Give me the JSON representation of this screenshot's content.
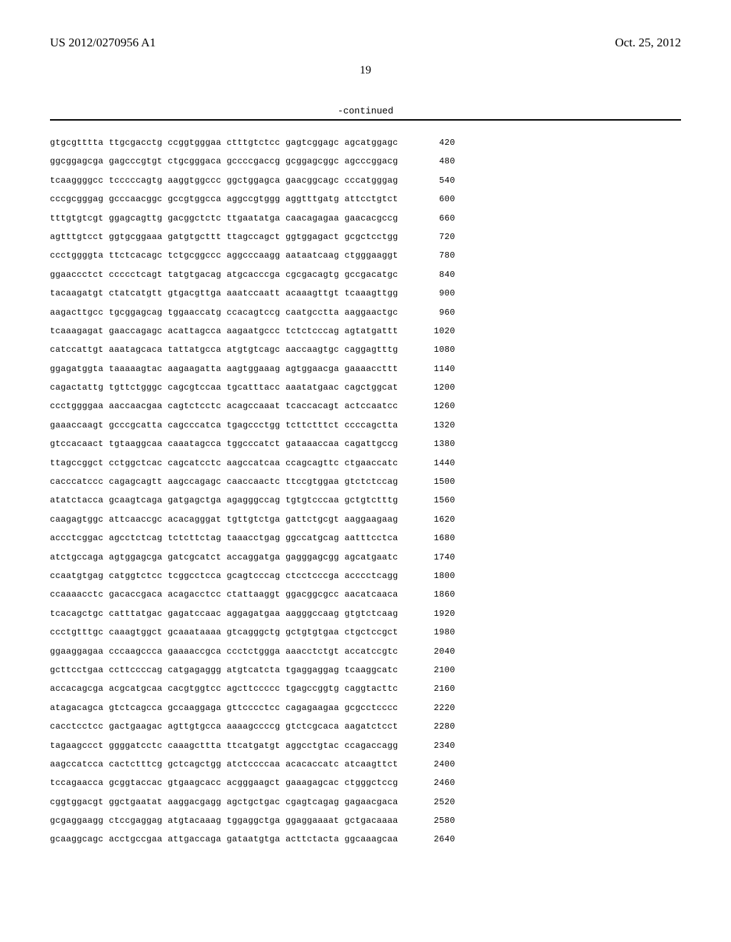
{
  "header": {
    "publication_number": "US 2012/0270956 A1",
    "publication_date": "Oct. 25, 2012"
  },
  "page_number": "19",
  "continued_label": "-continued",
  "sequence": {
    "rows": [
      {
        "text": "gtgcgtttta ttgcgacctg ccggtgggaa ctttgtctcc gagtcggagc agcatggagc",
        "pos": "420"
      },
      {
        "text": "ggcggagcga gagcccgtgt ctgcgggaca gccccgaccg gcggagcggc agcccggacg",
        "pos": "480"
      },
      {
        "text": "tcaaggggcc tcccccagtg aaggtggccc ggctggagca gaacggcagc cccatgggag",
        "pos": "540"
      },
      {
        "text": "cccgcgggag gcccaacggc gccgtggcca aggccgtggg aggtttgatg attcctgtct",
        "pos": "600"
      },
      {
        "text": "tttgtgtcgt ggagcagttg gacggctctc ttgaatatga caacagagaa gaacacgccg",
        "pos": "660"
      },
      {
        "text": "agtttgtcct ggtgcggaaa gatgtgcttt ttagccagct ggtggagact gcgctcctgg",
        "pos": "720"
      },
      {
        "text": "ccctggggta ttctcacagc tctgcggccc aggcccaagg aataatcaag ctgggaaggt",
        "pos": "780"
      },
      {
        "text": "ggaaccctct ccccctcagt tatgtgacag atgcacccga cgcgacagtg gccgacatgc",
        "pos": "840"
      },
      {
        "text": "tacaagatgt ctatcatgtt gtgacgttga aaatccaatt acaaagttgt tcaaagttgg",
        "pos": "900"
      },
      {
        "text": "aagacttgcc tgcggagcag tggaaccatg ccacagtccg caatgcctta aaggaactgc",
        "pos": "960"
      },
      {
        "text": "tcaaagagat gaaccagagc acattagcca aagaatgccc tctctcccag agtatgattt",
        "pos": "1020"
      },
      {
        "text": "catccattgt aaatagcaca tattatgcca atgtgtcagc aaccaagtgc caggagtttg",
        "pos": "1080"
      },
      {
        "text": "ggagatggta taaaaagtac aagaagatta aagtggaaag agtggaacga gaaaaccttt",
        "pos": "1140"
      },
      {
        "text": "cagactattg tgttctgggc cagcgtccaa tgcatttacc aaatatgaac cagctggcat",
        "pos": "1200"
      },
      {
        "text": "ccctggggaa aaccaacgaa cagtctcctc acagccaaat tcaccacagt actccaatcc",
        "pos": "1260"
      },
      {
        "text": "gaaaccaagt gcccgcatta cagcccatca tgagccctgg tcttctttct ccccagctta",
        "pos": "1320"
      },
      {
        "text": "gtccacaact tgtaaggcaa caaatagcca tggcccatct gataaaccaa cagattgccg",
        "pos": "1380"
      },
      {
        "text": "ttagccggct cctggctcac cagcatcctc aagccatcaa ccagcagttc ctgaaccatc",
        "pos": "1440"
      },
      {
        "text": "cacccatccc cagagcagtt aagccagagc caaccaactc ttccgtggaa gtctctccag",
        "pos": "1500"
      },
      {
        "text": "atatctacca gcaagtcaga gatgagctga agagggccag tgtgtcccaa gctgtctttg",
        "pos": "1560"
      },
      {
        "text": "caagagtggc attcaaccgc acacagggat tgttgtctga gattctgcgt aaggaagaag",
        "pos": "1620"
      },
      {
        "text": "accctcggac agcctctcag tctcttctag taaacctgag ggccatgcag aatttcctca",
        "pos": "1680"
      },
      {
        "text": "atctgccaga agtggagcga gatcgcatct accaggatga gagggagcgg agcatgaatc",
        "pos": "1740"
      },
      {
        "text": "ccaatgtgag catggtctcc tcggcctcca gcagtcccag ctcctcccga acccctcagg",
        "pos": "1800"
      },
      {
        "text": "ccaaaacctc gacaccgaca acagacctcc ctattaaggt ggacggcgcc aacatcaaca",
        "pos": "1860"
      },
      {
        "text": "tcacagctgc catttatgac gagatccaac aggagatgaa aagggccaag gtgtctcaag",
        "pos": "1920"
      },
      {
        "text": "ccctgtttgc caaagtggct gcaaataaaa gtcagggctg gctgtgtgaa ctgctccgct",
        "pos": "1980"
      },
      {
        "text": "ggaaggagaa cccaagccca gaaaaccgca ccctctggga aaacctctgt accatccgtc",
        "pos": "2040"
      },
      {
        "text": "gcttcctgaa ccttccccag catgagaggg atgtcatcta tgaggaggag tcaaggcatc",
        "pos": "2100"
      },
      {
        "text": "accacagcga acgcatgcaa cacgtggtcc agcttccccc tgagccggtg caggtacttc",
        "pos": "2160"
      },
      {
        "text": "atagacagca gtctcagcca gccaaggaga gttcccctcc cagagaagaa gcgcctcccc",
        "pos": "2220"
      },
      {
        "text": "cacctcctcc gactgaagac agttgtgcca aaaagccccg gtctcgcaca aagatctcct",
        "pos": "2280"
      },
      {
        "text": "tagaagccct ggggatcctc caaagcttta ttcatgatgt aggcctgtac ccagaccagg",
        "pos": "2340"
      },
      {
        "text": "aagccatcca cactctttcg gctcagctgg atctccccaa acacaccatc atcaagttct",
        "pos": "2400"
      },
      {
        "text": "tccagaacca gcggtaccac gtgaagcacc acgggaagct gaaagagcac ctgggctccg",
        "pos": "2460"
      },
      {
        "text": "cggtggacgt ggctgaatat aaggacgagg agctgctgac cgagtcagag gagaacgaca",
        "pos": "2520"
      },
      {
        "text": "gcgaggaagg ctccgaggag atgtacaaag tggaggctga ggaggaaaat gctgacaaaa",
        "pos": "2580"
      },
      {
        "text": "gcaaggcagc acctgccgaa attgaccaga gataatgtga acttctacta ggcaaagcaa",
        "pos": "2640"
      }
    ]
  }
}
